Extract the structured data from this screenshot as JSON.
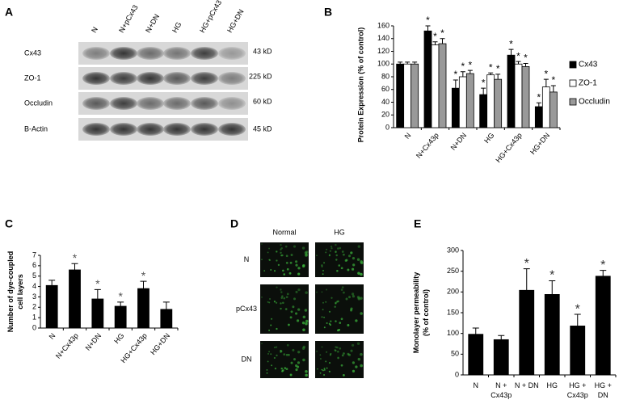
{
  "panel_labels": [
    "A",
    "B",
    "C",
    "D",
    "E"
  ],
  "blot": {
    "lanes": [
      "N",
      "N+pCx43",
      "N+DN",
      "HG",
      "HG+pCx43",
      "HG+DN"
    ],
    "rows": [
      {
        "protein": "Cx43",
        "size": "43 kD"
      },
      {
        "protein": "ZO-1",
        "size": "225 kD"
      },
      {
        "protein": "Occludin",
        "size": "60 kD"
      },
      {
        "protein": "B-Actin",
        "size": "45 kD"
      }
    ]
  },
  "micrographs": {
    "columns": [
      "Normal",
      "HG"
    ],
    "rows": [
      "N",
      "pCx43",
      "DN"
    ]
  },
  "chart_data": [
    {
      "type": "bar",
      "ylabel": "Protein Expression (% of control)",
      "categories": [
        "N",
        "N+Cx43p",
        "N+DN",
        "HG",
        "HG+Cx43p",
        "HG+DN"
      ],
      "series": [
        {
          "name": "Cx43",
          "color": "#000000",
          "values": [
            100,
            152,
            62,
            52,
            114,
            33
          ],
          "errors": [
            3,
            8,
            13,
            10,
            9,
            6
          ],
          "significant": [
            false,
            true,
            true,
            true,
            true,
            true
          ]
        },
        {
          "name": "ZO-1",
          "color": "#ffffff",
          "values": [
            100,
            130,
            80,
            83,
            100,
            64
          ],
          "errors": [
            3,
            5,
            8,
            3,
            4,
            12
          ],
          "significant": [
            false,
            true,
            true,
            true,
            true,
            true
          ]
        },
        {
          "name": "Occludin",
          "color": "#999999",
          "values": [
            100,
            132,
            85,
            76,
            96,
            56
          ],
          "errors": [
            3,
            8,
            5,
            8,
            5,
            10
          ],
          "significant": [
            false,
            true,
            true,
            true,
            true,
            true
          ]
        }
      ],
      "ylim": [
        0,
        160
      ],
      "yticks": [
        0,
        20,
        40,
        60,
        80,
        100,
        120,
        140,
        160
      ],
      "annotation": "*",
      "legend": "right"
    },
    {
      "type": "bar",
      "ylabel": [
        "Number of dye-coupled",
        "cell layers"
      ],
      "categories": [
        "N",
        "N+Cx43p",
        "N+DN",
        "HG",
        "HG+Cx43p",
        "HG+DN"
      ],
      "series": [
        {
          "color": "#000000",
          "values": [
            4.1,
            5.6,
            2.8,
            2.1,
            3.8,
            1.8
          ],
          "errors": [
            0.5,
            0.6,
            0.9,
            0.4,
            0.7,
            0.7
          ],
          "significant": [
            false,
            true,
            true,
            true,
            true,
            false
          ]
        }
      ],
      "ylim": [
        0,
        7
      ],
      "yticks": [
        0,
        1,
        2,
        3,
        4,
        5,
        6,
        7
      ],
      "annotation": "*"
    },
    {
      "type": "bar",
      "ylabel": [
        "Monolayer permeability",
        "(% of control)"
      ],
      "categories": [
        [
          "N"
        ],
        [
          "N +",
          "Cx43p"
        ],
        [
          "N + DN"
        ],
        [
          "HG"
        ],
        [
          "HG +",
          "Cx43p"
        ],
        [
          "HG +",
          "DN"
        ]
      ],
      "series": [
        {
          "color": "#000000",
          "values": [
            98,
            85,
            204,
            194,
            118,
            238
          ],
          "errors": [
            15,
            10,
            52,
            33,
            28,
            14
          ],
          "significant": [
            false,
            false,
            true,
            true,
            true,
            true
          ]
        }
      ],
      "ylim": [
        0,
        300
      ],
      "yticks": [
        0,
        50,
        100,
        150,
        200,
        250,
        300
      ],
      "annotation": "*"
    }
  ]
}
